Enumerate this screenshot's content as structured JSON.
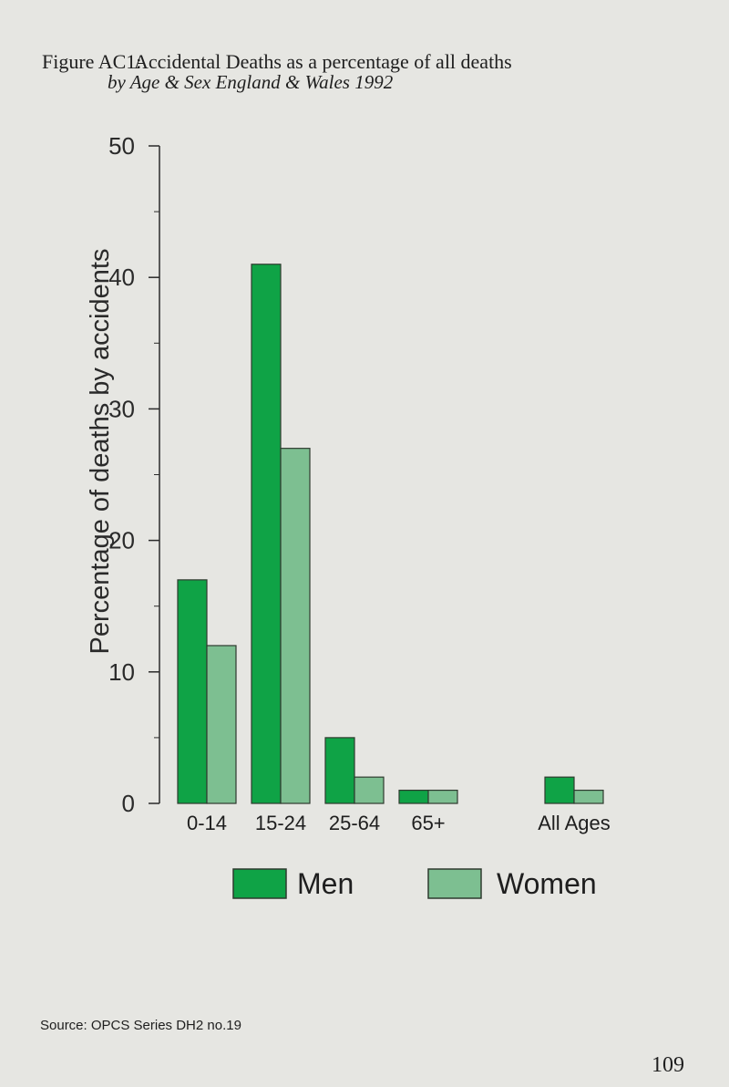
{
  "figure": {
    "label": "Figure AC1:",
    "title": "Accidental Deaths as a percentage of all deaths",
    "subtitle": "by Age & Sex   England & Wales   1992"
  },
  "chart_data": {
    "type": "bar",
    "categories": [
      "0-14",
      "15-24",
      "25-64",
      "65+",
      "All Ages"
    ],
    "series": [
      {
        "name": "Men",
        "values": [
          17,
          41,
          5,
          1,
          2
        ]
      },
      {
        "name": "Women",
        "values": [
          12,
          27,
          2,
          1,
          1
        ]
      }
    ],
    "ylabel": "Percentage of deaths by accidents",
    "ylim": [
      0,
      50
    ],
    "yticks": [
      0,
      10,
      20,
      30,
      40,
      50
    ],
    "grid": false,
    "legend": "bottom",
    "colors": {
      "Men": "#0fa346",
      "Women": "#7dbf91"
    }
  },
  "source": "Source: OPCS Series DH2 no.19",
  "page_number": "109"
}
